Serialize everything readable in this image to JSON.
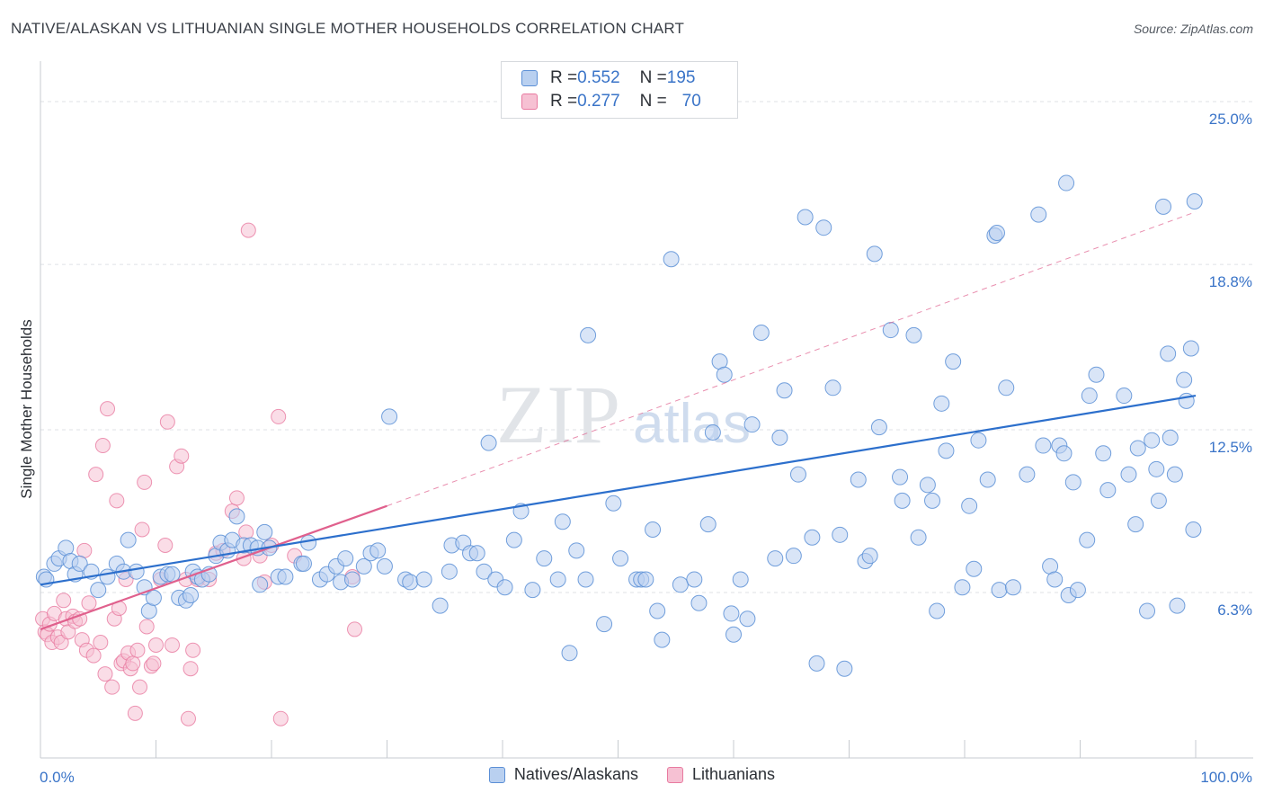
{
  "header": {
    "title": "NATIVE/ALASKAN VS LITHUANIAN SINGLE MOTHER HOUSEHOLDS CORRELATION CHART",
    "source": "Source: ZipAtlas.com"
  },
  "colors": {
    "blue": "#5b8fd6",
    "blue_fill": "#b9d0f0",
    "blue_line": "#2c6fcc",
    "pink": "#e87aa0",
    "pink_fill": "#f6c1d3",
    "pink_line": "#e0608d",
    "tick_label": "#3a74c8",
    "grid": "#dfe2e6"
  },
  "legend_top": {
    "rows": [
      {
        "r_label": "R = ",
        "r_value": "0.552",
        "n_label": "N = ",
        "n_value": "195"
      },
      {
        "r_label": "R = ",
        "r_value": "0.277",
        "n_label": "N = ",
        "n_value": "70"
      }
    ]
  },
  "legend_bottom": [
    "Natives/Alaskans",
    "Lithuanians"
  ],
  "watermark": {
    "zip": "ZIP",
    "atlas": "atlas"
  },
  "chart_data": {
    "type": "scatter",
    "title": "NATIVE/ALASKAN VS LITHUANIAN SINGLE MOTHER HOUSEHOLDS CORRELATION CHART",
    "xlabel": "",
    "ylabel": "Single Mother Households",
    "xlim": [
      0,
      100
    ],
    "ylim": [
      0,
      26.2
    ],
    "x_tick_labels": [
      "0.0%",
      "100.0%"
    ],
    "y_ticks": [
      6.3,
      12.5,
      18.8,
      25.0
    ],
    "y_tick_labels": [
      "6.3%",
      "12.5%",
      "18.8%",
      "25.0%"
    ],
    "grid": true,
    "legend_placement": "bottom-center",
    "series": [
      {
        "name": "Natives/Alaskans",
        "r": 0.552,
        "n": 195,
        "trend": {
          "x": [
            0,
            100
          ],
          "y": [
            6.6,
            13.8
          ],
          "style": "solid"
        },
        "points": [
          [
            0.3,
            6.9
          ],
          [
            0.5,
            6.8
          ],
          [
            1.2,
            7.4
          ],
          [
            1.6,
            7.6
          ],
          [
            2.2,
            8.0
          ],
          [
            2.6,
            7.5
          ],
          [
            3.0,
            7.0
          ],
          [
            3.4,
            7.4
          ],
          [
            4.4,
            7.1
          ],
          [
            5.0,
            6.4
          ],
          [
            5.8,
            6.9
          ],
          [
            6.6,
            7.4
          ],
          [
            7.2,
            7.1
          ],
          [
            7.6,
            8.3
          ],
          [
            8.3,
            7.1
          ],
          [
            9.0,
            6.5
          ],
          [
            9.4,
            5.6
          ],
          [
            9.8,
            6.1
          ],
          [
            10.4,
            6.9
          ],
          [
            11.0,
            7.0
          ],
          [
            11.4,
            7.0
          ],
          [
            12.0,
            6.1
          ],
          [
            12.6,
            6.0
          ],
          [
            13.0,
            6.2
          ],
          [
            13.2,
            7.1
          ],
          [
            13.6,
            6.9
          ],
          [
            14.0,
            6.8
          ],
          [
            14.6,
            7.0
          ],
          [
            15.2,
            7.7
          ],
          [
            15.6,
            8.2
          ],
          [
            16.2,
            7.9
          ],
          [
            16.6,
            8.3
          ],
          [
            17.0,
            9.2
          ],
          [
            17.6,
            8.1
          ],
          [
            18.2,
            8.1
          ],
          [
            18.8,
            8.0
          ],
          [
            19.0,
            6.6
          ],
          [
            19.4,
            8.6
          ],
          [
            19.8,
            8.0
          ],
          [
            20.6,
            6.9
          ],
          [
            21.2,
            6.9
          ],
          [
            22.6,
            7.4
          ],
          [
            22.8,
            7.4
          ],
          [
            23.2,
            8.2
          ],
          [
            24.2,
            6.8
          ],
          [
            24.8,
            7.0
          ],
          [
            25.6,
            7.3
          ],
          [
            26.0,
            6.7
          ],
          [
            26.4,
            7.6
          ],
          [
            27.0,
            6.8
          ],
          [
            28.0,
            7.3
          ],
          [
            28.6,
            7.8
          ],
          [
            29.2,
            7.9
          ],
          [
            29.8,
            7.3
          ],
          [
            30.2,
            13.0
          ],
          [
            31.6,
            6.8
          ],
          [
            32.0,
            6.7
          ],
          [
            33.2,
            6.8
          ],
          [
            34.6,
            5.8
          ],
          [
            35.4,
            7.1
          ],
          [
            35.6,
            8.1
          ],
          [
            36.6,
            8.2
          ],
          [
            37.2,
            7.8
          ],
          [
            37.8,
            7.8
          ],
          [
            38.4,
            7.1
          ],
          [
            38.8,
            12.0
          ],
          [
            39.4,
            6.8
          ],
          [
            40.2,
            6.5
          ],
          [
            41.0,
            8.3
          ],
          [
            41.6,
            9.4
          ],
          [
            42.6,
            6.4
          ],
          [
            43.6,
            7.6
          ],
          [
            44.8,
            6.8
          ],
          [
            45.2,
            9.0
          ],
          [
            45.8,
            4.0
          ],
          [
            46.4,
            7.9
          ],
          [
            47.2,
            6.8
          ],
          [
            47.4,
            16.1
          ],
          [
            48.8,
            5.1
          ],
          [
            49.6,
            9.7
          ],
          [
            50.2,
            7.6
          ],
          [
            51.6,
            6.8
          ],
          [
            52.0,
            6.8
          ],
          [
            52.4,
            6.8
          ],
          [
            53.0,
            8.7
          ],
          [
            53.4,
            5.6
          ],
          [
            53.8,
            4.5
          ],
          [
            54.6,
            19.0
          ],
          [
            55.4,
            6.6
          ],
          [
            56.6,
            6.8
          ],
          [
            57.0,
            5.9
          ],
          [
            57.8,
            8.9
          ],
          [
            58.2,
            12.4
          ],
          [
            58.8,
            15.1
          ],
          [
            59.2,
            14.6
          ],
          [
            59.8,
            5.5
          ],
          [
            60.0,
            4.7
          ],
          [
            60.6,
            6.8
          ],
          [
            61.2,
            5.3
          ],
          [
            61.6,
            12.7
          ],
          [
            62.4,
            16.2
          ],
          [
            63.6,
            7.6
          ],
          [
            64.0,
            12.2
          ],
          [
            64.4,
            14.0
          ],
          [
            65.2,
            7.7
          ],
          [
            65.6,
            10.8
          ],
          [
            66.2,
            20.6
          ],
          [
            66.8,
            8.4
          ],
          [
            67.2,
            3.6
          ],
          [
            67.8,
            20.2
          ],
          [
            68.6,
            14.1
          ],
          [
            69.2,
            8.5
          ],
          [
            69.6,
            3.4
          ],
          [
            70.8,
            10.6
          ],
          [
            71.4,
            7.5
          ],
          [
            71.8,
            7.7
          ],
          [
            72.2,
            19.2
          ],
          [
            72.6,
            12.6
          ],
          [
            73.6,
            16.3
          ],
          [
            74.4,
            10.7
          ],
          [
            74.6,
            9.8
          ],
          [
            75.6,
            16.1
          ],
          [
            76.0,
            8.4
          ],
          [
            76.8,
            10.4
          ],
          [
            77.2,
            9.8
          ],
          [
            77.6,
            5.6
          ],
          [
            78.0,
            13.5
          ],
          [
            78.4,
            11.7
          ],
          [
            79.0,
            15.1
          ],
          [
            79.8,
            6.5
          ],
          [
            80.4,
            9.6
          ],
          [
            80.8,
            7.2
          ],
          [
            81.2,
            12.1
          ],
          [
            82.0,
            10.6
          ],
          [
            82.6,
            19.9
          ],
          [
            82.8,
            20.0
          ],
          [
            83.0,
            6.4
          ],
          [
            83.6,
            14.1
          ],
          [
            84.2,
            6.5
          ],
          [
            85.4,
            10.8
          ],
          [
            86.4,
            20.7
          ],
          [
            86.8,
            11.9
          ],
          [
            87.4,
            7.3
          ],
          [
            87.8,
            6.8
          ],
          [
            88.2,
            11.9
          ],
          [
            88.6,
            11.6
          ],
          [
            88.8,
            21.9
          ],
          [
            89.0,
            6.2
          ],
          [
            89.4,
            10.5
          ],
          [
            89.8,
            6.4
          ],
          [
            90.6,
            8.3
          ],
          [
            90.8,
            13.8
          ],
          [
            91.4,
            14.6
          ],
          [
            92.0,
            11.6
          ],
          [
            92.4,
            10.2
          ],
          [
            93.8,
            13.8
          ],
          [
            94.2,
            10.8
          ],
          [
            94.8,
            8.9
          ],
          [
            95.0,
            11.8
          ],
          [
            95.8,
            5.6
          ],
          [
            96.2,
            12.1
          ],
          [
            96.8,
            9.8
          ],
          [
            96.6,
            11.0
          ],
          [
            97.2,
            21.0
          ],
          [
            97.6,
            15.4
          ],
          [
            97.8,
            12.2
          ],
          [
            98.2,
            10.8
          ],
          [
            98.4,
            5.8
          ],
          [
            99.0,
            14.4
          ],
          [
            99.2,
            13.6
          ],
          [
            99.6,
            15.6
          ],
          [
            99.8,
            8.7
          ],
          [
            99.9,
            21.2
          ]
        ]
      },
      {
        "name": "Lithuanians",
        "r": 0.277,
        "n": 70,
        "trend": {
          "x": [
            0,
            30
          ],
          "y": [
            4.9,
            9.6
          ],
          "style": "solid",
          "extended": {
            "x": [
              30,
              100
            ],
            "y": [
              9.6,
              20.8
            ],
            "style": "dashed"
          }
        },
        "points": [
          [
            0.2,
            5.3
          ],
          [
            0.4,
            4.8
          ],
          [
            0.6,
            4.7
          ],
          [
            0.8,
            5.1
          ],
          [
            1.0,
            4.4
          ],
          [
            1.2,
            5.5
          ],
          [
            1.5,
            4.6
          ],
          [
            1.8,
            4.4
          ],
          [
            2.0,
            6.0
          ],
          [
            2.2,
            5.3
          ],
          [
            2.4,
            4.8
          ],
          [
            2.8,
            5.4
          ],
          [
            3.0,
            5.2
          ],
          [
            3.4,
            5.3
          ],
          [
            3.6,
            4.5
          ],
          [
            3.8,
            7.9
          ],
          [
            4.0,
            4.1
          ],
          [
            4.2,
            5.9
          ],
          [
            4.6,
            3.9
          ],
          [
            4.8,
            10.8
          ],
          [
            5.2,
            4.4
          ],
          [
            5.4,
            11.9
          ],
          [
            5.6,
            3.2
          ],
          [
            5.8,
            13.3
          ],
          [
            6.2,
            2.7
          ],
          [
            6.4,
            5.3
          ],
          [
            6.6,
            9.8
          ],
          [
            6.8,
            5.7
          ],
          [
            7.0,
            3.6
          ],
          [
            7.2,
            3.7
          ],
          [
            7.4,
            6.8
          ],
          [
            7.6,
            4.0
          ],
          [
            7.8,
            3.4
          ],
          [
            8.0,
            3.6
          ],
          [
            8.2,
            1.7
          ],
          [
            8.4,
            4.1
          ],
          [
            8.6,
            2.7
          ],
          [
            8.8,
            8.7
          ],
          [
            9.0,
            10.5
          ],
          [
            9.2,
            5.0
          ],
          [
            9.6,
            3.5
          ],
          [
            9.8,
            3.6
          ],
          [
            10.0,
            4.3
          ],
          [
            10.4,
            6.8
          ],
          [
            10.8,
            8.1
          ],
          [
            11.0,
            12.8
          ],
          [
            11.4,
            4.3
          ],
          [
            11.8,
            11.1
          ],
          [
            12.2,
            11.5
          ],
          [
            12.6,
            6.8
          ],
          [
            12.8,
            1.5
          ],
          [
            13.0,
            3.4
          ],
          [
            13.2,
            4.1
          ],
          [
            13.6,
            6.8
          ],
          [
            14.6,
            6.8
          ],
          [
            15.2,
            7.8
          ],
          [
            15.8,
            7.9
          ],
          [
            16.6,
            9.4
          ],
          [
            17.0,
            9.9
          ],
          [
            17.6,
            7.6
          ],
          [
            17.8,
            8.6
          ],
          [
            18.0,
            20.1
          ],
          [
            19.0,
            7.7
          ],
          [
            19.4,
            6.7
          ],
          [
            20.0,
            8.1
          ],
          [
            20.6,
            13.0
          ],
          [
            20.8,
            1.5
          ],
          [
            22.0,
            7.7
          ],
          [
            27.0,
            6.9
          ],
          [
            27.2,
            4.9
          ]
        ]
      }
    ]
  }
}
